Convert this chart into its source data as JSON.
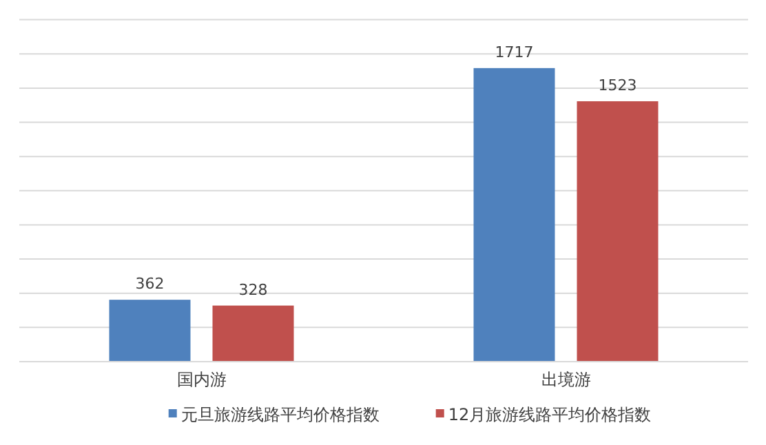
{
  "chart_data": {
    "type": "bar",
    "categories": [
      "国内游",
      "出境游"
    ],
    "series": [
      {
        "name": "元旦旅游线路平均价格指数",
        "color": "#4f81bd",
        "values": [
          362,
          1717
        ]
      },
      {
        "name": "12月旅游线路平均价格指数",
        "color": "#c0504d",
        "values": [
          328,
          1523
        ]
      }
    ],
    "ylim": [
      0,
      2000
    ],
    "yticks": [
      {
        "value": 0,
        "label": null
      },
      {
        "value": 200,
        "label": null
      },
      {
        "value": 400,
        "label": null
      },
      {
        "value": 600,
        "label": null
      },
      {
        "value": 800,
        "label": null
      },
      {
        "value": 1000,
        "label": null
      },
      {
        "value": 1200,
        "label": null
      },
      {
        "value": 1400,
        "label": null
      },
      {
        "value": 1600,
        "label": null
      },
      {
        "value": 1800,
        "label": null
      },
      {
        "value": 2000,
        "label": null
      }
    ],
    "tick_labels": "x",
    "grid": "y",
    "legend": "bottom",
    "data_labels": true
  }
}
